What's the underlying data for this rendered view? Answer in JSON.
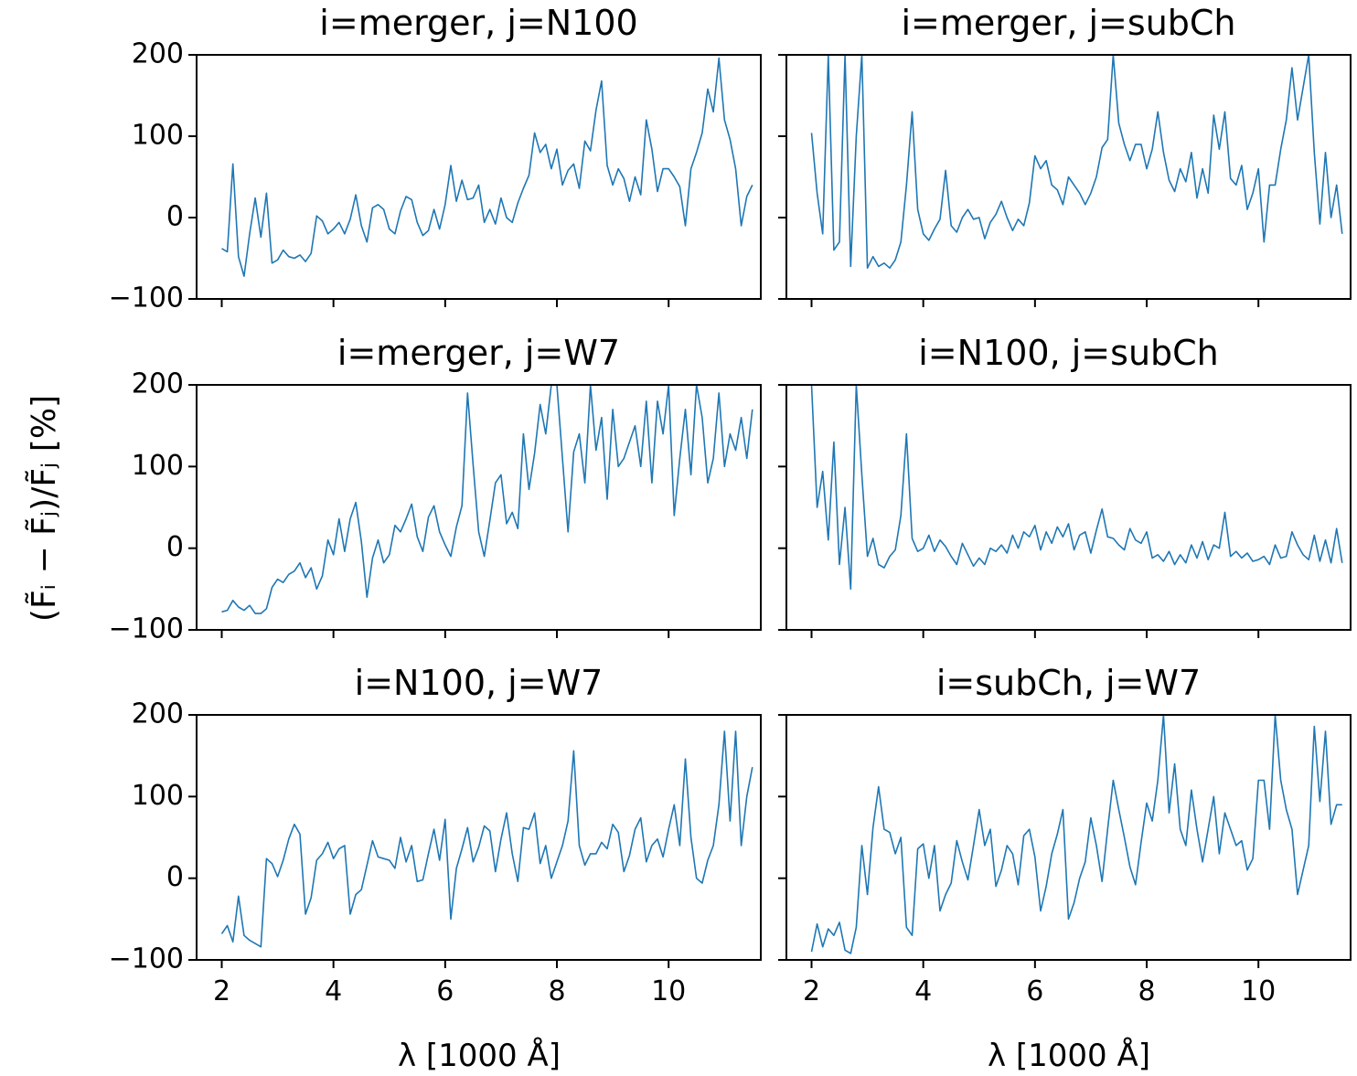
{
  "figure": {
    "ylabel": "(F̃ᵢ − F̃ⱼ)/F̃ⱼ [%]",
    "xlabel": "λ [1000 Å]",
    "line_color": "#1f77b4"
  },
  "chart_data": [
    {
      "type": "line",
      "title": "i=merger, j=N100",
      "xlim": [
        1.55,
        11.65
      ],
      "ylim": [
        -100,
        200
      ],
      "xticks": [
        2,
        4,
        6,
        8,
        10
      ],
      "yticks": [
        -100,
        0,
        100,
        200
      ],
      "x": [
        2.0,
        2.1,
        2.2,
        2.3,
        2.4,
        2.5,
        2.6,
        2.7,
        2.8,
        2.9,
        3.0,
        3.1,
        3.2,
        3.3,
        3.4,
        3.5,
        3.6,
        3.7,
        3.8,
        3.9,
        4.0,
        4.1,
        4.2,
        4.3,
        4.4,
        4.5,
        4.6,
        4.7,
        4.8,
        4.9,
        5.0,
        5.1,
        5.2,
        5.3,
        5.4,
        5.5,
        5.6,
        5.7,
        5.8,
        5.9,
        6.0,
        6.1,
        6.2,
        6.3,
        6.4,
        6.5,
        6.6,
        6.7,
        6.8,
        6.9,
        7.0,
        7.1,
        7.2,
        7.3,
        7.4,
        7.5,
        7.6,
        7.7,
        7.8,
        7.9,
        8.0,
        8.1,
        8.2,
        8.3,
        8.4,
        8.5,
        8.6,
        8.7,
        8.8,
        8.9,
        9.0,
        9.1,
        9.2,
        9.3,
        9.4,
        9.5,
        9.6,
        9.7,
        9.8,
        9.9,
        10.0,
        10.1,
        10.2,
        10.3,
        10.4,
        10.5,
        10.6,
        10.7,
        10.8,
        10.9,
        11.0,
        11.1,
        11.2,
        11.3,
        11.4,
        11.5
      ],
      "y": [
        -38,
        -42,
        66,
        -48,
        -72,
        -20,
        24,
        -24,
        30,
        -56,
        -52,
        -40,
        -48,
        -50,
        -46,
        -54,
        -44,
        2,
        -4,
        -20,
        -14,
        -6,
        -20,
        -2,
        28,
        -10,
        -30,
        12,
        16,
        10,
        -14,
        -20,
        8,
        26,
        22,
        -6,
        -22,
        -16,
        10,
        -14,
        16,
        64,
        20,
        46,
        22,
        24,
        40,
        -6,
        10,
        -8,
        24,
        0,
        -6,
        18,
        36,
        52,
        104,
        80,
        90,
        60,
        84,
        40,
        58,
        66,
        36,
        94,
        82,
        132,
        168,
        64,
        40,
        60,
        48,
        20,
        50,
        28,
        120,
        84,
        32,
        60,
        60,
        50,
        38,
        -10,
        60,
        80,
        104,
        158,
        130,
        196,
        120,
        96,
        60,
        -10,
        26,
        40
      ],
      "description": "merger vs N100 relative flux difference"
    },
    {
      "type": "line",
      "title": "i=merger, j=subCh",
      "xlim": [
        1.55,
        11.65
      ],
      "ylim": [
        -100,
        200
      ],
      "xticks": [
        2,
        4,
        6,
        8,
        10
      ],
      "yticks": [
        -100,
        0,
        100,
        200
      ],
      "x": [
        2.0,
        2.1,
        2.2,
        2.3,
        2.4,
        2.5,
        2.6,
        2.7,
        2.8,
        2.9,
        3.0,
        3.1,
        3.2,
        3.3,
        3.4,
        3.5,
        3.6,
        3.7,
        3.8,
        3.9,
        4.0,
        4.1,
        4.2,
        4.3,
        4.4,
        4.5,
        4.6,
        4.7,
        4.8,
        4.9,
        5.0,
        5.1,
        5.2,
        5.3,
        5.4,
        5.5,
        5.6,
        5.7,
        5.8,
        5.9,
        6.0,
        6.1,
        6.2,
        6.3,
        6.4,
        6.5,
        6.6,
        6.7,
        6.8,
        6.9,
        7.0,
        7.1,
        7.2,
        7.3,
        7.4,
        7.5,
        7.6,
        7.7,
        7.8,
        7.9,
        8.0,
        8.1,
        8.2,
        8.3,
        8.4,
        8.5,
        8.6,
        8.7,
        8.8,
        8.9,
        9.0,
        9.1,
        9.2,
        9.3,
        9.4,
        9.5,
        9.6,
        9.7,
        9.8,
        9.9,
        10.0,
        10.1,
        10.2,
        10.3,
        10.4,
        10.5,
        10.6,
        10.7,
        10.8,
        10.9,
        11.0,
        11.1,
        11.2,
        11.3,
        11.4,
        11.5
      ],
      "y": [
        104,
        30,
        -20,
        200,
        -40,
        -30,
        200,
        -60,
        100,
        200,
        -62,
        -48,
        -60,
        -56,
        -62,
        -52,
        -30,
        40,
        130,
        10,
        -20,
        -28,
        -14,
        -2,
        58,
        -10,
        -18,
        0,
        10,
        -2,
        0,
        -26,
        -6,
        4,
        20,
        0,
        -16,
        -2,
        -10,
        18,
        76,
        60,
        70,
        40,
        34,
        16,
        50,
        40,
        30,
        16,
        30,
        50,
        86,
        96,
        200,
        116,
        90,
        70,
        90,
        90,
        60,
        84,
        130,
        80,
        46,
        32,
        60,
        44,
        80,
        24,
        60,
        30,
        126,
        84,
        130,
        48,
        40,
        64,
        10,
        30,
        60,
        -30,
        40,
        40,
        84,
        120,
        184,
        120,
        160,
        200,
        80,
        -8,
        80,
        0,
        40,
        -20
      ],
      "description": "merger vs subCh relative flux difference"
    },
    {
      "type": "line",
      "title": "i=merger, j=W7",
      "xlim": [
        1.55,
        11.65
      ],
      "ylim": [
        -100,
        200
      ],
      "xticks": [
        2,
        4,
        6,
        8,
        10
      ],
      "yticks": [
        -100,
        0,
        100,
        200
      ],
      "x": [
        2.0,
        2.1,
        2.2,
        2.3,
        2.4,
        2.5,
        2.6,
        2.7,
        2.8,
        2.9,
        3.0,
        3.1,
        3.2,
        3.3,
        3.4,
        3.5,
        3.6,
        3.7,
        3.8,
        3.9,
        4.0,
        4.1,
        4.2,
        4.3,
        4.4,
        4.5,
        4.6,
        4.7,
        4.8,
        4.9,
        5.0,
        5.1,
        5.2,
        5.3,
        5.4,
        5.5,
        5.6,
        5.7,
        5.8,
        5.9,
        6.0,
        6.1,
        6.2,
        6.3,
        6.4,
        6.5,
        6.6,
        6.7,
        6.8,
        6.9,
        7.0,
        7.1,
        7.2,
        7.3,
        7.4,
        7.5,
        7.6,
        7.7,
        7.8,
        7.9,
        8.0,
        8.1,
        8.2,
        8.3,
        8.4,
        8.5,
        8.6,
        8.7,
        8.8,
        8.9,
        9.0,
        9.1,
        9.2,
        9.3,
        9.4,
        9.5,
        9.6,
        9.7,
        9.8,
        9.9,
        10.0,
        10.1,
        10.2,
        10.3,
        10.4,
        10.5,
        10.6,
        10.7,
        10.8,
        10.9,
        11.0,
        11.1,
        11.2,
        11.3,
        11.4,
        11.5
      ],
      "y": [
        -78,
        -76,
        -64,
        -72,
        -76,
        -70,
        -80,
        -80,
        -74,
        -48,
        -38,
        -42,
        -32,
        -28,
        -18,
        -36,
        -24,
        -50,
        -34,
        10,
        -8,
        36,
        -4,
        36,
        56,
        8,
        -60,
        -12,
        10,
        -18,
        -8,
        28,
        20,
        36,
        54,
        14,
        -4,
        38,
        52,
        20,
        4,
        -10,
        26,
        52,
        190,
        102,
        20,
        -10,
        34,
        80,
        90,
        30,
        44,
        24,
        140,
        72,
        116,
        176,
        140,
        200,
        200,
        110,
        20,
        118,
        140,
        80,
        200,
        120,
        160,
        60,
        170,
        100,
        110,
        130,
        150,
        100,
        180,
        80,
        180,
        140,
        200,
        40,
        110,
        170,
        90,
        200,
        160,
        80,
        110,
        190,
        100,
        140,
        120,
        160,
        110,
        170
      ],
      "description": "merger vs W7 relative flux difference"
    },
    {
      "type": "line",
      "title": "i=N100, j=subCh",
      "xlim": [
        1.55,
        11.65
      ],
      "ylim": [
        -100,
        200
      ],
      "xticks": [
        2,
        4,
        6,
        8,
        10
      ],
      "yticks": [
        -100,
        0,
        100,
        200
      ],
      "x": [
        2.0,
        2.1,
        2.2,
        2.3,
        2.4,
        2.5,
        2.6,
        2.7,
        2.8,
        2.9,
        3.0,
        3.1,
        3.2,
        3.3,
        3.4,
        3.5,
        3.6,
        3.7,
        3.8,
        3.9,
        4.0,
        4.1,
        4.2,
        4.3,
        4.4,
        4.5,
        4.6,
        4.7,
        4.8,
        4.9,
        5.0,
        5.1,
        5.2,
        5.3,
        5.4,
        5.5,
        5.6,
        5.7,
        5.8,
        5.9,
        6.0,
        6.1,
        6.2,
        6.3,
        6.4,
        6.5,
        6.6,
        6.7,
        6.8,
        6.9,
        7.0,
        7.1,
        7.2,
        7.3,
        7.4,
        7.5,
        7.6,
        7.7,
        7.8,
        7.9,
        8.0,
        8.1,
        8.2,
        8.3,
        8.4,
        8.5,
        8.6,
        8.7,
        8.8,
        8.9,
        9.0,
        9.1,
        9.2,
        9.3,
        9.4,
        9.5,
        9.6,
        9.7,
        9.8,
        9.9,
        10.0,
        10.1,
        10.2,
        10.3,
        10.4,
        10.5,
        10.6,
        10.7,
        10.8,
        10.9,
        11.0,
        11.1,
        11.2,
        11.3,
        11.4,
        11.5
      ],
      "y": [
        200,
        50,
        94,
        10,
        130,
        -20,
        50,
        -50,
        200,
        90,
        -10,
        12,
        -20,
        -24,
        -10,
        -2,
        40,
        140,
        12,
        -4,
        0,
        16,
        -4,
        10,
        2,
        -10,
        -20,
        6,
        -8,
        -22,
        -12,
        -20,
        0,
        -4,
        4,
        -6,
        16,
        0,
        20,
        14,
        28,
        -2,
        20,
        6,
        26,
        14,
        30,
        -2,
        16,
        20,
        -6,
        22,
        48,
        14,
        12,
        4,
        -2,
        24,
        10,
        6,
        20,
        -12,
        -8,
        -16,
        -4,
        -20,
        -8,
        -18,
        4,
        -12,
        8,
        -14,
        4,
        0,
        44,
        -10,
        -4,
        -12,
        -6,
        -16,
        -14,
        -10,
        -20,
        4,
        -12,
        -10,
        20,
        4,
        -8,
        -14,
        16,
        -16,
        10,
        -18,
        24,
        -18
      ],
      "description": "N100 vs subCh relative flux difference"
    },
    {
      "type": "line",
      "title": "i=N100, j=W7",
      "xlim": [
        1.55,
        11.65
      ],
      "ylim": [
        -100,
        200
      ],
      "xticks": [
        2,
        4,
        6,
        8,
        10
      ],
      "yticks": [
        -100,
        0,
        100,
        200
      ],
      "x": [
        2.0,
        2.1,
        2.2,
        2.3,
        2.4,
        2.5,
        2.6,
        2.7,
        2.8,
        2.9,
        3.0,
        3.1,
        3.2,
        3.3,
        3.4,
        3.5,
        3.6,
        3.7,
        3.8,
        3.9,
        4.0,
        4.1,
        4.2,
        4.3,
        4.4,
        4.5,
        4.6,
        4.7,
        4.8,
        4.9,
        5.0,
        5.1,
        5.2,
        5.3,
        5.4,
        5.5,
        5.6,
        5.7,
        5.8,
        5.9,
        6.0,
        6.1,
        6.2,
        6.3,
        6.4,
        6.5,
        6.6,
        6.7,
        6.8,
        6.9,
        7.0,
        7.1,
        7.2,
        7.3,
        7.4,
        7.5,
        7.6,
        7.7,
        7.8,
        7.9,
        8.0,
        8.1,
        8.2,
        8.3,
        8.4,
        8.5,
        8.6,
        8.7,
        8.8,
        8.9,
        9.0,
        9.1,
        9.2,
        9.3,
        9.4,
        9.5,
        9.6,
        9.7,
        9.8,
        9.9,
        10.0,
        10.1,
        10.2,
        10.3,
        10.4,
        10.5,
        10.6,
        10.7,
        10.8,
        10.9,
        11.0,
        11.1,
        11.2,
        11.3,
        11.4,
        11.5
      ],
      "y": [
        -68,
        -58,
        -78,
        -22,
        -70,
        -76,
        -80,
        -84,
        24,
        18,
        2,
        22,
        48,
        66,
        54,
        -44,
        -24,
        22,
        30,
        44,
        24,
        36,
        40,
        -44,
        -20,
        -14,
        16,
        46,
        26,
        24,
        22,
        12,
        50,
        20,
        40,
        -4,
        -2,
        30,
        60,
        22,
        72,
        -50,
        12,
        36,
        62,
        20,
        38,
        64,
        58,
        8,
        48,
        80,
        30,
        -4,
        62,
        60,
        80,
        18,
        40,
        0,
        20,
        40,
        70,
        156,
        40,
        16,
        30,
        30,
        44,
        36,
        66,
        56,
        8,
        28,
        60,
        74,
        20,
        40,
        48,
        26,
        60,
        90,
        40,
        146,
        50,
        0,
        -6,
        22,
        40,
        90,
        180,
        70,
        180,
        40,
        100,
        136
      ],
      "description": "N100 vs W7 relative flux difference"
    },
    {
      "type": "line",
      "title": "i=subCh, j=W7",
      "xlim": [
        1.55,
        11.65
      ],
      "ylim": [
        -100,
        200
      ],
      "xticks": [
        2,
        4,
        6,
        8,
        10
      ],
      "yticks": [
        -100,
        0,
        100,
        200
      ],
      "x": [
        2.0,
        2.1,
        2.2,
        2.3,
        2.4,
        2.5,
        2.6,
        2.7,
        2.8,
        2.9,
        3.0,
        3.1,
        3.2,
        3.3,
        3.4,
        3.5,
        3.6,
        3.7,
        3.8,
        3.9,
        4.0,
        4.1,
        4.2,
        4.3,
        4.4,
        4.5,
        4.6,
        4.7,
        4.8,
        4.9,
        5.0,
        5.1,
        5.2,
        5.3,
        5.4,
        5.5,
        5.6,
        5.7,
        5.8,
        5.9,
        6.0,
        6.1,
        6.2,
        6.3,
        6.4,
        6.5,
        6.6,
        6.7,
        6.8,
        6.9,
        7.0,
        7.1,
        7.2,
        7.3,
        7.4,
        7.5,
        7.6,
        7.7,
        7.8,
        7.9,
        8.0,
        8.1,
        8.2,
        8.3,
        8.4,
        8.5,
        8.6,
        8.7,
        8.8,
        8.9,
        9.0,
        9.1,
        9.2,
        9.3,
        9.4,
        9.5,
        9.6,
        9.7,
        9.8,
        9.9,
        10.0,
        10.1,
        10.2,
        10.3,
        10.4,
        10.5,
        10.6,
        10.7,
        10.8,
        10.9,
        11.0,
        11.1,
        11.2,
        11.3,
        11.4,
        11.5
      ],
      "y": [
        -90,
        -56,
        -84,
        -62,
        -70,
        -54,
        -88,
        -92,
        -60,
        40,
        -20,
        62,
        112,
        60,
        56,
        30,
        50,
        -60,
        -70,
        36,
        42,
        0,
        40,
        -40,
        -20,
        -6,
        46,
        20,
        -2,
        40,
        84,
        40,
        60,
        -10,
        10,
        40,
        30,
        -8,
        52,
        60,
        26,
        -40,
        -10,
        30,
        54,
        84,
        -50,
        -30,
        0,
        20,
        74,
        40,
        -4,
        60,
        120,
        84,
        50,
        14,
        -8,
        44,
        92,
        70,
        120,
        200,
        80,
        140,
        60,
        40,
        108,
        60,
        20,
        60,
        100,
        30,
        80,
        60,
        40,
        46,
        10,
        24,
        120,
        120,
        60,
        200,
        120,
        84,
        60,
        -20,
        10,
        40,
        186,
        94,
        180,
        66,
        90,
        90
      ],
      "description": "subCh vs W7 relative flux difference"
    }
  ]
}
